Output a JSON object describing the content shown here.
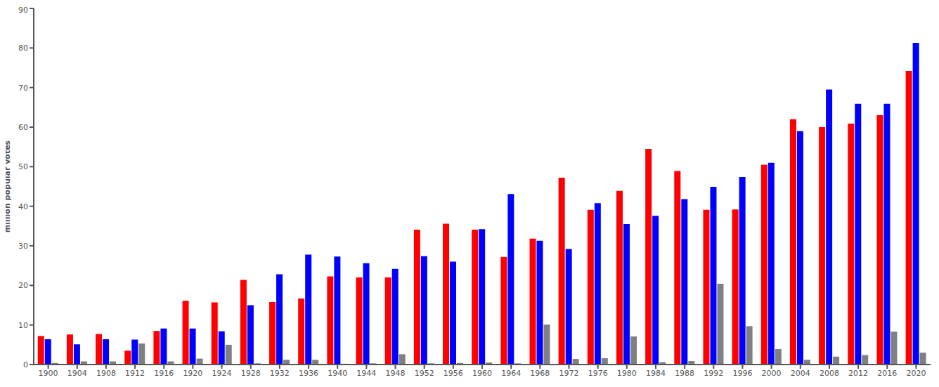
{
  "chart_data": {
    "type": "bar",
    "y_label": "million popular votes",
    "categories": [
      1900,
      1904,
      1908,
      1912,
      1916,
      1920,
      1924,
      1928,
      1932,
      1936,
      1940,
      1944,
      1948,
      1952,
      1956,
      1960,
      1964,
      1968,
      1972,
      1976,
      1980,
      1984,
      1988,
      1992,
      1996,
      2000,
      2004,
      2008,
      2012,
      2016,
      2020
    ],
    "series": [
      {
        "color": "#ff0000",
        "values": [
          7.2,
          7.6,
          7.7,
          3.5,
          8.5,
          16.1,
          15.7,
          21.4,
          15.8,
          16.7,
          22.3,
          22.0,
          22.0,
          34.1,
          35.6,
          34.1,
          27.2,
          31.8,
          47.2,
          39.1,
          43.9,
          54.5,
          48.9,
          39.1,
          39.2,
          50.5,
          62.0,
          60.0,
          60.9,
          63.0,
          74.2
        ]
      },
      {
        "color": "#0000ff",
        "values": [
          6.4,
          5.1,
          6.4,
          6.3,
          9.1,
          9.1,
          8.4,
          15.0,
          22.8,
          27.8,
          27.3,
          25.6,
          24.2,
          27.4,
          26.0,
          34.2,
          43.1,
          31.3,
          29.2,
          40.8,
          35.5,
          37.6,
          41.8,
          44.9,
          47.4,
          51.0,
          59.0,
          69.5,
          65.9,
          65.9,
          81.3
        ]
      },
      {
        "color": "#808080",
        "values": [
          0.4,
          0.8,
          0.8,
          5.3,
          0.8,
          1.5,
          5.0,
          0.3,
          1.2,
          1.2,
          0.2,
          0.3,
          2.6,
          0.3,
          0.4,
          0.5,
          0.3,
          10.1,
          1.4,
          1.6,
          7.1,
          0.6,
          0.9,
          20.4,
          9.7,
          3.9,
          1.2,
          2.0,
          2.4,
          8.3,
          3.0
        ]
      }
    ],
    "ylim": [
      0,
      90
    ],
    "yticks": [
      0,
      10,
      20,
      30,
      40,
      50,
      60,
      70,
      80,
      90
    ],
    "grid": false
  }
}
